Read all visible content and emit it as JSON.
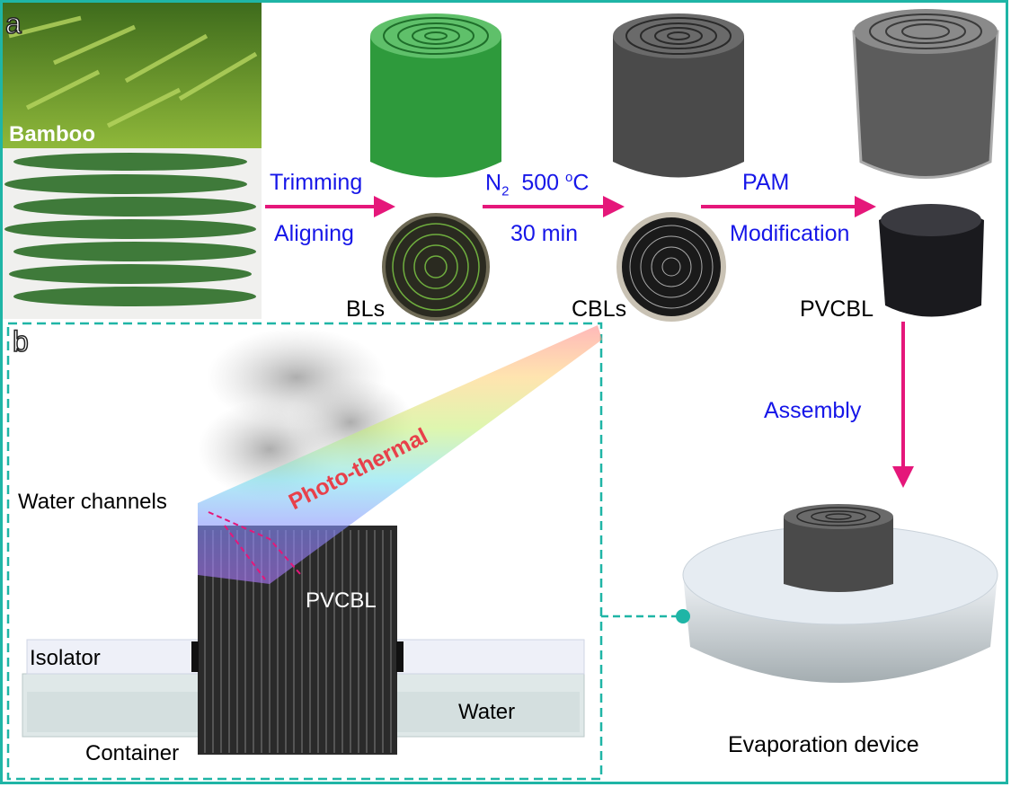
{
  "panel_labels": {
    "a": "a",
    "b": "b"
  },
  "panel_a": {
    "bamboo_label": "Bamboo",
    "step1": {
      "line1": "Trimming",
      "line2": "Aligning",
      "product": "BLs"
    },
    "step2": {
      "line1_gas": "N",
      "line1_sub": "2",
      "line1_temp": "500 ",
      "line1_deg": "o",
      "line1_unit": "C",
      "line2": "30 min",
      "product": "CBLs"
    },
    "step3": {
      "line1": "PAM",
      "line2": "Modification",
      "product": "PVCBL"
    },
    "step4": {
      "label": "Assembly",
      "product": "Evaporation device"
    }
  },
  "panel_b": {
    "beam_label": "Photo-thermal",
    "water_channels": "Water channels",
    "block_label": "PVCBL",
    "isolator": "Isolator",
    "water": "Water",
    "container": "Container"
  },
  "colors": {
    "frame": "#1fb5a6",
    "arrow": "#e5177a",
    "process_text": "#1616e8",
    "beam_text": "#e8404a",
    "leaf_green": "#2e9a3c",
    "carbon": "#4a4a4a"
  }
}
